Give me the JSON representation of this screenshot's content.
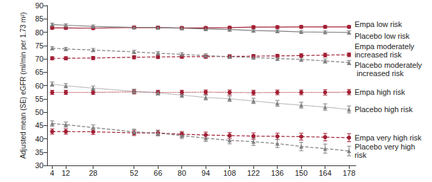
{
  "chart_data": {
    "type": "line",
    "ylabel": "Adjusted mean (SE) eGFR (ml/min per 1.73 m²)",
    "x": [
      4,
      12,
      28,
      52,
      66,
      80,
      94,
      108,
      122,
      136,
      150,
      164,
      178
    ],
    "xlim": [
      1,
      182
    ],
    "xticks": [
      4,
      12,
      28,
      52,
      66,
      80,
      94,
      108,
      122,
      136,
      150,
      164,
      178
    ],
    "ylim": [
      30,
      90
    ],
    "yticks": [
      30,
      35,
      40,
      45,
      50,
      55,
      60,
      65,
      70,
      75,
      80,
      85,
      90
    ],
    "grid": false,
    "series": [
      {
        "name": "Empa low risk",
        "color": "#a31f34",
        "marker": "circle",
        "line_style": "solid",
        "values": [
          81.6,
          81.6,
          81.5,
          81.8,
          81.7,
          81.6,
          81.6,
          81.7,
          81.9,
          81.9,
          82.0,
          82.0,
          82.0
        ],
        "se": [
          0.5,
          0.5,
          0.5,
          0.5,
          0.5,
          0.5,
          0.5,
          0.5,
          0.5,
          0.5,
          0.5,
          0.5,
          0.5
        ]
      },
      {
        "name": "Placebo low risk",
        "color": "#7f7f7f",
        "marker": "triangle",
        "line_style": "solid",
        "values": [
          82.9,
          82.6,
          82.2,
          81.8,
          81.7,
          81.5,
          81.2,
          81.0,
          80.6,
          80.4,
          80.1,
          80.0,
          79.9
        ],
        "se": [
          0.5,
          0.5,
          0.5,
          0.5,
          0.5,
          0.5,
          0.5,
          0.5,
          0.5,
          0.5,
          0.5,
          0.5,
          0.6
        ]
      },
      {
        "name": "Empa moderately increased risk",
        "color": "#a31f34",
        "marker": "circle",
        "line_style": "dashed",
        "values": [
          70.2,
          70.2,
          70.3,
          70.6,
          70.7,
          70.8,
          70.8,
          70.9,
          71.0,
          71.1,
          71.2,
          71.4,
          71.5
        ],
        "se": [
          0.6,
          0.6,
          0.6,
          0.6,
          0.6,
          0.6,
          0.6,
          0.6,
          0.6,
          0.6,
          0.7,
          0.7,
          0.7
        ]
      },
      {
        "name": "Placebo moderately increased risk",
        "color": "#7f7f7f",
        "marker": "triangle",
        "line_style": "dashed",
        "values": [
          74.0,
          73.7,
          73.3,
          72.6,
          72.1,
          71.7,
          71.2,
          70.8,
          70.5,
          70.1,
          69.8,
          69.2,
          68.6
        ],
        "se": [
          0.6,
          0.6,
          0.6,
          0.6,
          0.6,
          0.6,
          0.7,
          0.7,
          0.7,
          0.7,
          0.8,
          0.8,
          0.8
        ]
      },
      {
        "name": "Empa high risk",
        "color": "#a31f34",
        "marker": "circle",
        "line_style": "dotted",
        "values": [
          57.4,
          57.4,
          57.4,
          57.6,
          57.4,
          57.4,
          57.5,
          57.4,
          57.3,
          57.4,
          57.4,
          57.4,
          57.5
        ],
        "se": [
          0.8,
          0.8,
          0.8,
          0.8,
          0.8,
          0.8,
          0.8,
          0.9,
          0.9,
          0.9,
          0.9,
          1.0,
          1.0
        ]
      },
      {
        "name": "Placebo high risk",
        "color": "#7f7f7f",
        "marker": "triangle",
        "line_style": "dotted",
        "values": [
          60.5,
          59.9,
          59.0,
          57.8,
          57.2,
          56.4,
          55.5,
          55.0,
          54.2,
          53.3,
          52.6,
          51.9,
          51.0
        ],
        "se": [
          0.8,
          0.8,
          0.8,
          0.8,
          0.8,
          0.9,
          0.9,
          1.0,
          1.0,
          1.1,
          1.1,
          1.2,
          1.3
        ]
      },
      {
        "name": "Empa very high risk",
        "color": "#a31f34",
        "marker": "circle",
        "line_style": "dashed",
        "values": [
          42.7,
          42.7,
          42.6,
          42.2,
          42.2,
          41.7,
          41.4,
          41.2,
          41.0,
          40.9,
          40.8,
          40.6,
          40.4
        ],
        "se": [
          1.0,
          1.0,
          1.0,
          1.0,
          1.0,
          1.0,
          1.1,
          1.1,
          1.2,
          1.2,
          1.3,
          1.4,
          1.5
        ]
      },
      {
        "name": "Placebo very high risk",
        "color": "#7f7f7f",
        "marker": "triangle",
        "line_style": "dashed",
        "values": [
          45.7,
          45.3,
          44.2,
          42.6,
          42.1,
          41.2,
          40.2,
          39.4,
          38.9,
          38.2,
          37.1,
          36.3,
          35.4
        ],
        "se": [
          1.0,
          1.0,
          1.0,
          1.0,
          1.0,
          1.1,
          1.2,
          1.3,
          1.4,
          1.5,
          1.6,
          1.7,
          1.8
        ]
      }
    ]
  }
}
